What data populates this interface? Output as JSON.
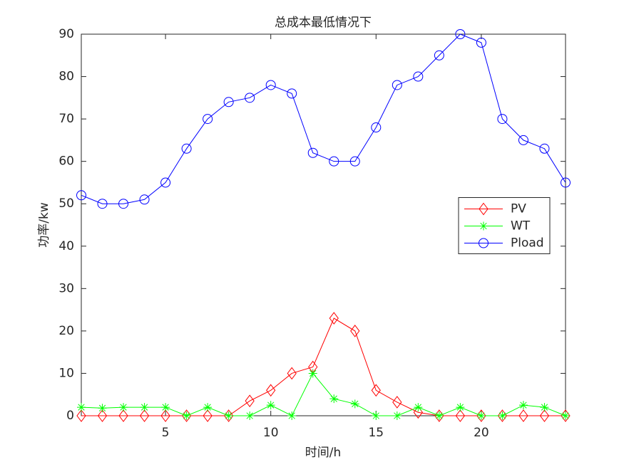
{
  "chart_data": {
    "type": "line",
    "title": "总成本最低情况下",
    "xlabel": "时间/h",
    "ylabel": "功率/kw",
    "x": [
      1,
      2,
      3,
      4,
      5,
      6,
      7,
      8,
      9,
      10,
      11,
      12,
      13,
      14,
      15,
      16,
      17,
      18,
      19,
      20,
      21,
      22,
      23,
      24
    ],
    "series": [
      {
        "name": "PV",
        "color": "#ff0000",
        "marker": "diamond",
        "values": [
          0,
          0,
          0,
          0,
          0,
          0,
          0,
          0,
          3.5,
          6,
          10,
          11.5,
          23,
          20,
          6,
          3.2,
          0.8,
          0,
          0,
          0,
          0,
          0,
          0,
          0
        ]
      },
      {
        "name": "WT",
        "color": "#00ff00",
        "marker": "asterisk",
        "values": [
          2,
          1.8,
          2,
          2,
          2,
          0,
          2,
          0,
          0,
          2.5,
          0,
          10,
          4,
          2.8,
          0,
          0,
          2,
          0,
          2,
          0,
          0,
          2.5,
          2,
          0
        ]
      },
      {
        "name": "Pload",
        "color": "#0000ff",
        "marker": "circle",
        "values": [
          52,
          50,
          50,
          51,
          55,
          63,
          70,
          74,
          75,
          78,
          76,
          62,
          60,
          60,
          68,
          78,
          80,
          85,
          90,
          88,
          70,
          65,
          63,
          55
        ]
      }
    ],
    "xlim": [
      1,
      24
    ],
    "xticks": [
      5,
      10,
      15,
      20
    ],
    "ylim": [
      0,
      90
    ],
    "yticks": [
      0,
      10,
      20,
      30,
      40,
      50,
      60,
      70,
      80,
      90
    ],
    "grid": false,
    "legend": "east"
  }
}
